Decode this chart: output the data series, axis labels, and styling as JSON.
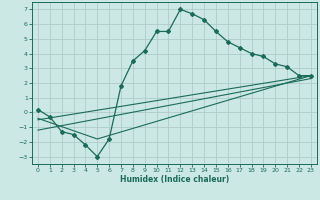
{
  "xlabel": "Humidex (Indice chaleur)",
  "ylabel": "",
  "bg_color": "#cce8e4",
  "grid_color": "#b0ccc8",
  "line_color": "#1a6b5a",
  "xlim": [
    -0.5,
    23.5
  ],
  "ylim": [
    -3.5,
    7.5
  ],
  "xticks": [
    0,
    1,
    2,
    3,
    4,
    5,
    6,
    7,
    8,
    9,
    10,
    11,
    12,
    13,
    14,
    15,
    16,
    17,
    18,
    19,
    20,
    21,
    22,
    23
  ],
  "yticks": [
    -3,
    -2,
    -1,
    0,
    1,
    2,
    3,
    4,
    5,
    6,
    7
  ],
  "line1_x": [
    0,
    1,
    2,
    3,
    4,
    5,
    6,
    7,
    8,
    9,
    10,
    11,
    12,
    13,
    14,
    15,
    16,
    17,
    18,
    19,
    20,
    21,
    22,
    23
  ],
  "line1_y": [
    0.2,
    -0.3,
    -1.3,
    -1.5,
    -2.2,
    -3.0,
    -1.8,
    1.8,
    3.5,
    4.2,
    5.5,
    5.5,
    7.0,
    6.7,
    6.3,
    5.5,
    4.8,
    4.4,
    4.0,
    3.8,
    3.3,
    3.1,
    2.5,
    2.5
  ],
  "line2_x": [
    0,
    23
  ],
  "line2_y": [
    -0.5,
    2.5
  ],
  "line3_x": [
    0,
    23
  ],
  "line3_y": [
    -1.2,
    2.3
  ],
  "line4_x": [
    0,
    5,
    23
  ],
  "line4_y": [
    -0.4,
    -1.8,
    2.5
  ]
}
